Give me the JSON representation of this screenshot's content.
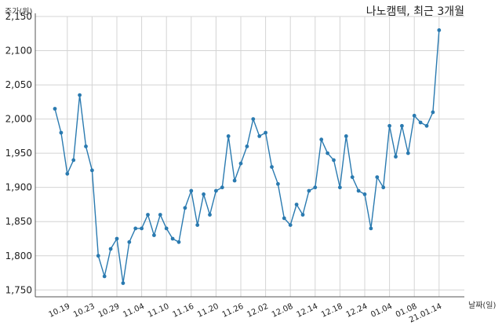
{
  "chart_data": {
    "type": "line",
    "title": "나노캠텍, 최근 3개월",
    "ylabel": "주가(원)",
    "xlabel": "날짜(일)",
    "ylim": [
      1740,
      2150
    ],
    "yticks": [
      1750,
      1800,
      1850,
      1900,
      1950,
      2000,
      2050,
      2100,
      2150
    ],
    "ytick_labels": [
      "1,750",
      "1,800",
      "1,850",
      "1,900",
      "1,950",
      "2,000",
      "2,050",
      "2,100",
      "2,150"
    ],
    "xtick_labels": [
      "10.19",
      "10.23",
      "10.29",
      "11.04",
      "11.10",
      "11.16",
      "11.20",
      "11.26",
      "12.02",
      "12.08",
      "12.14",
      "12.18",
      "12.24",
      "01.04",
      "01.08",
      "21.01.14"
    ],
    "xtick_index": [
      2,
      6,
      10,
      14,
      18,
      22,
      26,
      30,
      34,
      38,
      42,
      46,
      50,
      54,
      58,
      62
    ],
    "grid": true,
    "series": [
      {
        "color": "#2a7ab0",
        "values": [
          2015,
          1980,
          1920,
          1940,
          2035,
          1960,
          1925,
          1800,
          1770,
          1810,
          1825,
          1760,
          1820,
          1840,
          1840,
          1860,
          1830,
          1860,
          1840,
          1825,
          1820,
          1870,
          1895,
          1845,
          1890,
          1860,
          1895,
          1900,
          1975,
          1910,
          1935,
          1960,
          2000,
          1975,
          1980,
          1930,
          1905,
          1855,
          1845,
          1875,
          1860,
          1895,
          1900,
          1970,
          1950,
          1940,
          1900,
          1975,
          1915,
          1895,
          1890,
          1840,
          1915,
          1900,
          1990,
          1945,
          1990,
          1950,
          2005,
          1995,
          1990,
          2010,
          2130
        ]
      }
    ]
  }
}
